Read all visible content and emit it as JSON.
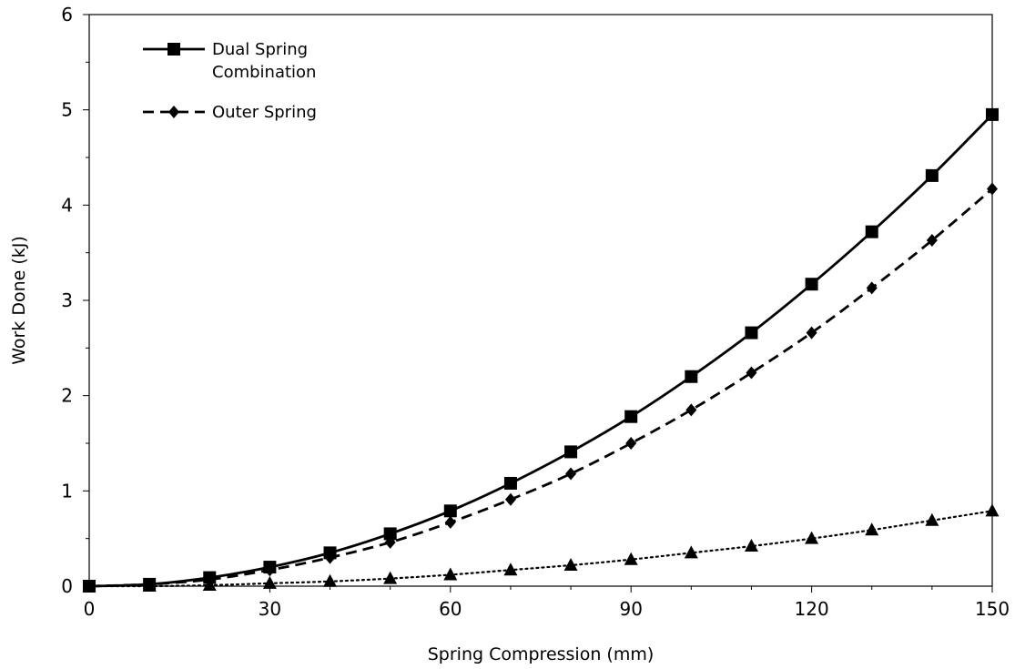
{
  "chart_data": {
    "type": "line",
    "xlabel": "Spring Compression (mm)",
    "ylabel": "Work Done (kJ)",
    "xlim": [
      0,
      150
    ],
    "ylim": [
      0,
      6
    ],
    "xticks": [
      0,
      30,
      60,
      90,
      120,
      150
    ],
    "yticks": [
      0,
      1,
      2,
      3,
      4,
      5,
      6
    ],
    "x_minor_step": 10,
    "y_minor_step": 0.5,
    "grid": false,
    "legend_position": "top-left",
    "x": [
      0,
      10,
      20,
      30,
      40,
      50,
      60,
      70,
      80,
      90,
      100,
      110,
      120,
      130,
      140,
      150
    ],
    "series": [
      {
        "name_lines": [
          "Dual Spring",
          "Combination"
        ],
        "marker": "square",
        "line_style": "solid",
        "in_legend": true,
        "values": [
          0,
          0.02,
          0.09,
          0.2,
          0.35,
          0.55,
          0.79,
          1.08,
          1.41,
          1.78,
          2.2,
          2.66,
          3.17,
          3.72,
          4.31,
          4.95
        ]
      },
      {
        "name_lines": [
          "Outer Spring"
        ],
        "marker": "diamond",
        "line_style": "dashed",
        "in_legend": true,
        "values": [
          0,
          0.02,
          0.07,
          0.17,
          0.3,
          0.46,
          0.67,
          0.91,
          1.18,
          1.5,
          1.85,
          2.24,
          2.66,
          3.13,
          3.63,
          4.17
        ]
      },
      {
        "name_lines": [],
        "marker": "triangle",
        "line_style": "dotted",
        "in_legend": false,
        "values": [
          0,
          0.0,
          0.01,
          0.03,
          0.05,
          0.08,
          0.12,
          0.17,
          0.22,
          0.28,
          0.35,
          0.42,
          0.5,
          0.59,
          0.69,
          0.79
        ]
      }
    ],
    "color": "#000000"
  }
}
